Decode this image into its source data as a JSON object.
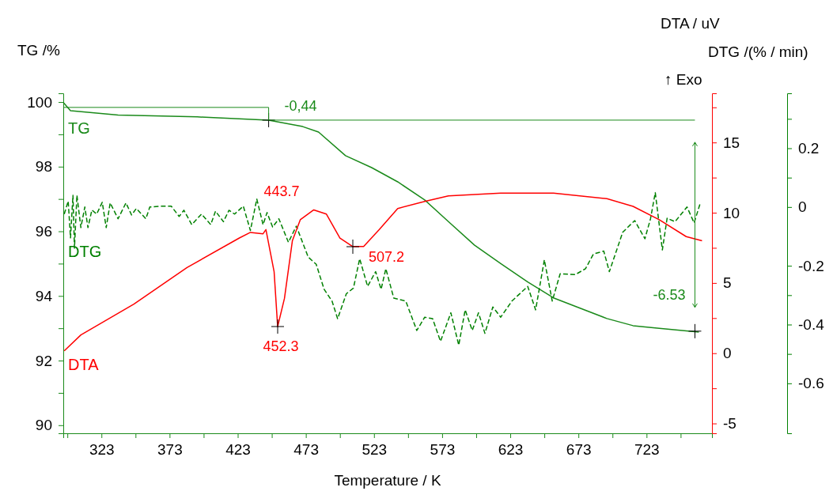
{
  "chart_data": {
    "type": "line",
    "xlabel": "Temperature / K",
    "ylabel": "TG /%",
    "y2label": "DTA / uV",
    "y3label": "DTG /(% / min)",
    "xlim": [
      295,
      771
    ],
    "xticks": [
      {
        "value": 298,
        "label": null
      },
      323,
      {
        "value": 348,
        "label": null
      },
      373,
      {
        "value": 398,
        "label": null
      },
      423,
      {
        "value": 448,
        "label": null
      },
      473,
      {
        "value": 498,
        "label": null
      },
      523,
      {
        "value": 548,
        "label": null
      },
      573,
      {
        "value": 598,
        "label": null
      },
      623,
      {
        "value": 648,
        "label": null
      },
      673,
      {
        "value": 698,
        "label": null
      },
      723,
      {
        "value": 748,
        "label": null
      }
    ],
    "ylim": [
      89.75,
      100.27
    ],
    "yticks": [
      90,
      {
        "value": 91,
        "label": null
      },
      92,
      {
        "value": 93,
        "label": null
      },
      94,
      {
        "value": 95,
        "label": null
      },
      96,
      {
        "value": 97,
        "label": null
      },
      98,
      {
        "value": 99,
        "label": null
      },
      100
    ],
    "y2lim": [
      -5.7,
      18.5
    ],
    "y2ticks": [
      -5,
      {
        "value": -2.5,
        "label": null
      },
      0,
      {
        "value": 2.5,
        "label": null
      },
      5,
      {
        "value": 7.5,
        "label": null
      },
      10,
      {
        "value": 12.5,
        "label": null
      },
      15,
      {
        "value": 17.5,
        "label": null
      }
    ],
    "y3lim": [
      -0.77,
      0.387
    ],
    "y3ticks": [
      -0.6,
      {
        "value": -0.5,
        "label": null
      },
      -0.4,
      {
        "value": -0.3,
        "label": null
      },
      -0.2,
      0,
      {
        "value": 0.1,
        "label": null
      },
      0.2,
      {
        "value": 0.3,
        "label": null
      }
    ],
    "grid": false,
    "series": [
      {
        "name": "TG",
        "color": "#1a8a1a",
        "line_style": "solid",
        "x": [
          295.1,
          300.3,
          335.2,
          393.3,
          445.7,
          470.7,
          482.3,
          502.1,
          521.3,
          540.4,
          560.2,
          577.6,
          596.8,
          616,
          635.8,
          654.7,
          674.2,
          693.9,
          713.1,
          732.3,
          761.4
        ],
        "values": [
          99.98,
          99.73,
          99.6,
          99.54,
          99.44,
          99.24,
          99.07,
          98.34,
          97.97,
          97.53,
          96.97,
          96.3,
          95.57,
          95.0,
          94.43,
          93.94,
          93.62,
          93.3,
          93.08,
          93.0,
          92.88
        ]
      },
      {
        "name": "DTG",
        "color": "#008000",
        "axis": "y3",
        "line_style": "dashed",
        "x": [
          295.7,
          298.6,
          300.3,
          302.1,
          303.2,
          305.0,
          307.9,
          310.8,
          313.1,
          316.0,
          319.5,
          323.6,
          326.5,
          329.4,
          335.2,
          341.0,
          345.1,
          348.6,
          355.6,
          358.5,
          366.0,
          374.2,
          380.0,
          383.5,
          389.3,
          396.4,
          403.2,
          406.7,
          412.5,
          416.6,
          420.7,
          427.1,
          432.3,
          437.0,
          441.6,
          444.5,
          448.6,
          453.2,
          460.2,
          466.0,
          474.7,
          480.6,
          486.4,
          492.2,
          496.3,
          502.7,
          507.9,
          512.5,
          518.3,
          524.2,
          528.2,
          531.7,
          537.5,
          546.3,
          554.4,
          560.2,
          566.0,
          571.8,
          579.4,
          585.2,
          589.9,
          595.1,
          599.7,
          604.4,
          610.2,
          616.0,
          624.2,
          635.8,
          641.6,
          648.0,
          653.8,
          659.6,
          670.7,
          678.2,
          684.0,
          691.6,
          695.7,
          705.5,
          714.3,
          721.8,
          725.9,
          729.4,
          734.6,
          738.1,
          743.9,
          752.7,
          757.9,
          762.6
        ],
        "values": [
          -0.024,
          0.02,
          -0.105,
          0.04,
          -0.14,
          0.04,
          -0.07,
          0.0,
          -0.07,
          -0.01,
          -0.024,
          0.016,
          -0.07,
          0.014,
          -0.04,
          0.014,
          -0.027,
          -0.005,
          -0.04,
          0.0,
          0.003,
          0.003,
          -0.032,
          -0.011,
          -0.06,
          -0.024,
          -0.06,
          -0.014,
          -0.05,
          -0.011,
          -0.024,
          0.003,
          -0.08,
          0.027,
          -0.06,
          -0.019,
          -0.068,
          -0.04,
          -0.12,
          -0.065,
          -0.17,
          -0.195,
          -0.28,
          -0.32,
          -0.38,
          -0.295,
          -0.276,
          -0.176,
          -0.27,
          -0.22,
          -0.28,
          -0.21,
          -0.31,
          -0.32,
          -0.42,
          -0.375,
          -0.38,
          -0.457,
          -0.36,
          -0.47,
          -0.35,
          -0.42,
          -0.36,
          -0.43,
          -0.34,
          -0.375,
          -0.32,
          -0.27,
          -0.35,
          -0.18,
          -0.32,
          -0.227,
          -0.23,
          -0.21,
          -0.16,
          -0.15,
          -0.22,
          -0.086,
          -0.046,
          -0.108,
          -0.04,
          0.049,
          -0.146,
          -0.038,
          -0.05,
          0.0,
          -0.054,
          0.016
        ]
      },
      {
        "name": "DTA",
        "color": "#ff0000",
        "axis": "y2",
        "line_style": "solid",
        "x": [
          295.7,
          307.9,
          346.8,
          385.8,
          424.2,
          432.3,
          441.6,
          443.7,
          449.7,
          452.3,
          457.3,
          463.1,
          468.9,
          478.8,
          488.1,
          498.0,
          507.2,
          515.4,
          526.9,
          540.4,
          560.2,
          577.6,
          616.0,
          654.7,
          693.9,
          713.1,
          732.3,
          752.1,
          763.7
        ],
        "values": [
          0.17,
          1.3,
          3.5,
          6.1,
          8.2,
          8.6,
          8.5,
          8.8,
          5.8,
          1.9,
          3.9,
          8.0,
          9.5,
          10.2,
          9.9,
          8.2,
          7.6,
          7.6,
          8.8,
          10.3,
          10.8,
          11.2,
          11.4,
          11.4,
          11.0,
          10.45,
          9.5,
          8.3,
          8.0
        ]
      }
    ],
    "annotations": [
      {
        "text": "-0,44",
        "x": 445.7,
        "y": 99.44
      },
      "443.7",
      "452.3",
      "507.2",
      {
        "text": "-6.53",
        "x": 758.5,
        "y": 92.91
      },
      "↑ Exo"
    ]
  }
}
